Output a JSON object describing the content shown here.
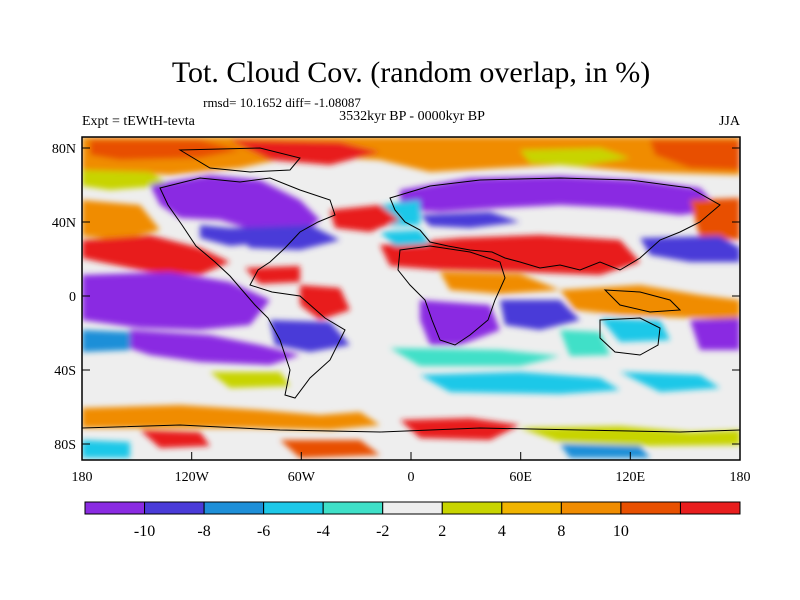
{
  "header": {
    "title": "Tot. Cloud Cov. (random overlap, in %)",
    "stats": "rmsd= 10.1652 diff= -1.08087",
    "experiment": "Expt = tEWtH-tevta",
    "period": "3532kyr BP - 0000kyr BP",
    "season": "JJA"
  },
  "axes": {
    "lat_ticks": [
      "80N",
      "40N",
      "0",
      "40S",
      "80S"
    ],
    "lon_ticks": [
      "180",
      "120W",
      "60W",
      "0",
      "60E",
      "120E",
      "180"
    ]
  },
  "colorbar": {
    "colors": [
      "#8a2be2",
      "#4a3bd8",
      "#1e8fd8",
      "#1ec8e8",
      "#3fe0c8",
      "#eeeeee",
      "#c8d400",
      "#f0b400",
      "#f08c00",
      "#e85000",
      "#e81e1e"
    ],
    "labels": [
      "-10",
      "-8",
      "-6",
      "-4",
      "-2",
      "2",
      "4",
      "8",
      "10"
    ]
  },
  "map_colors": {
    "ocean_neutral": "#eeeeee",
    "strong_neg": "#8a2be2",
    "neg": "#4a3bd8",
    "mid_neg": "#1e8fd8",
    "weak_neg": "#1ec8e8",
    "weak_neg2": "#3fe0c8",
    "weak_pos": "#c8d400",
    "pos": "#f0b400",
    "mid_pos": "#f08c00",
    "strong_pos": "#e85000",
    "max_pos": "#e81e1e"
  }
}
